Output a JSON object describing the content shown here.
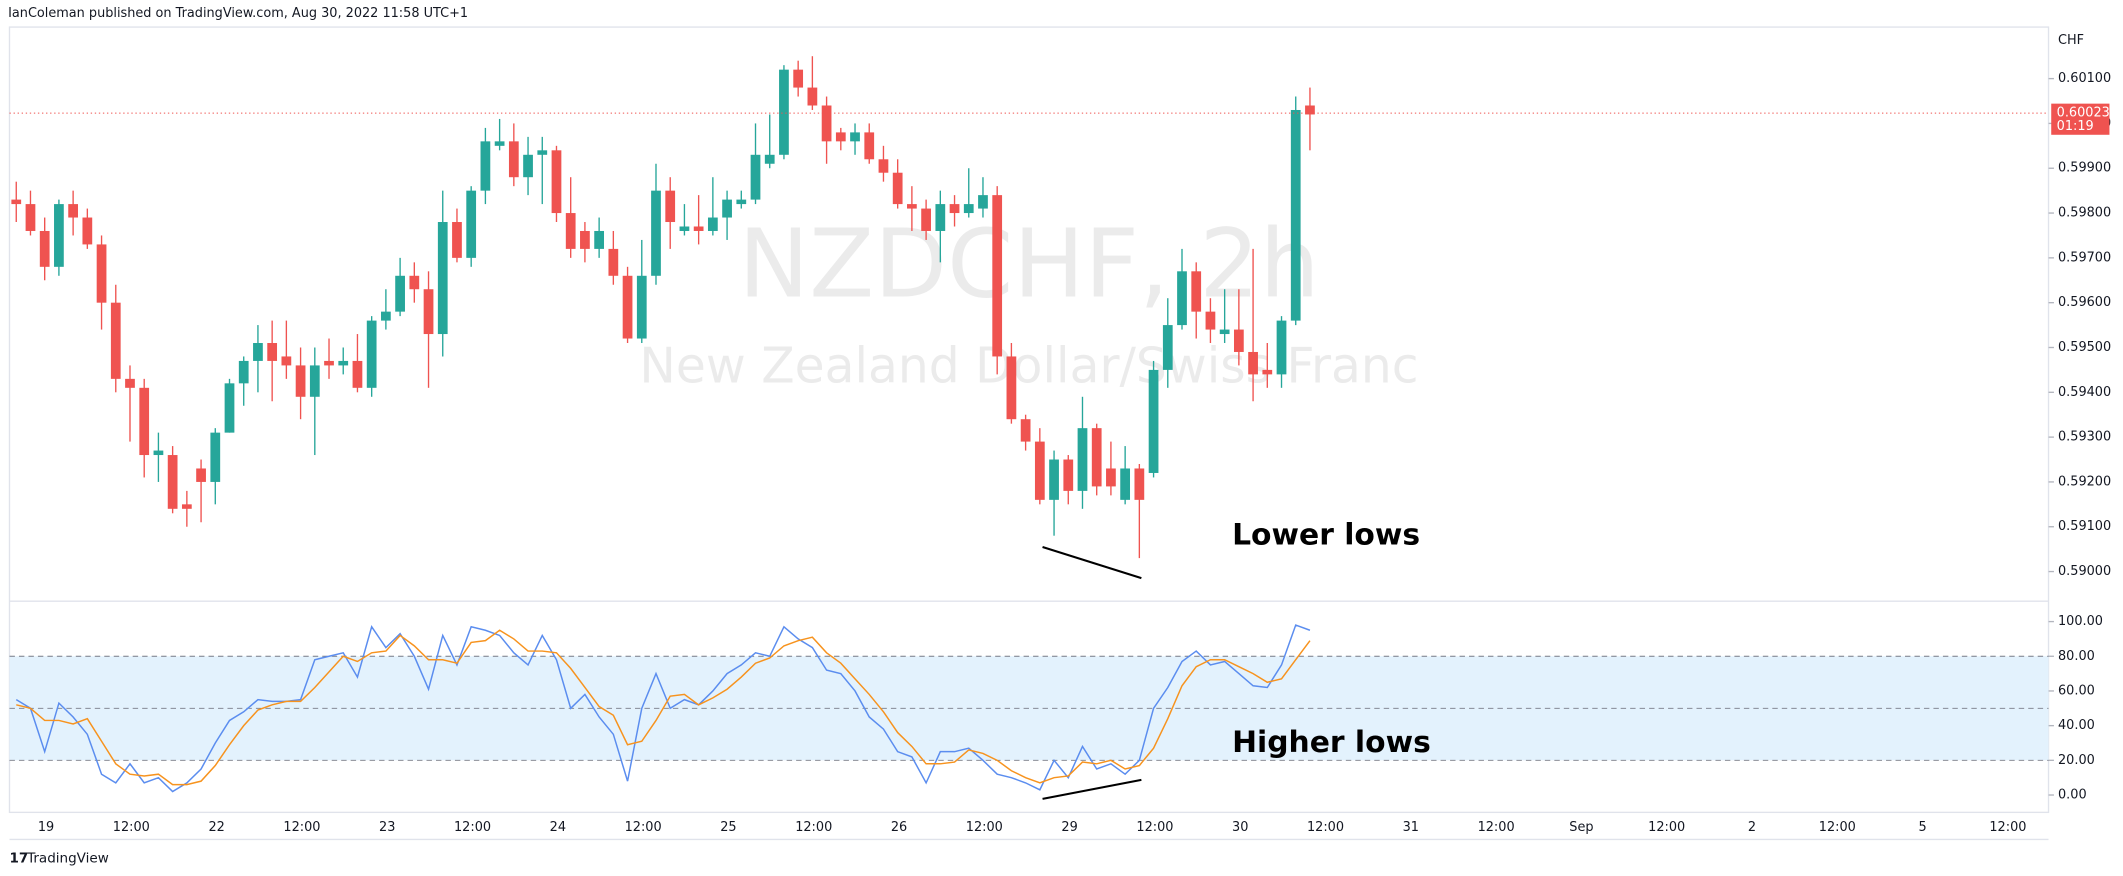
{
  "header": "IanColeman published on TradingView.com, Aug 30, 2022 11:58 UTC+1",
  "footer": "TradingView",
  "chart_data": [
    {
      "type": "candlestick",
      "title": "NZDCHF, 2h",
      "subtitle": "New Zealand Dollar/Swiss Franc",
      "currency": "CHF",
      "up_color": "#26a69a",
      "down_color": "#ef5350",
      "open": [
        0.5983,
        0.5982,
        0.5976,
        0.5968,
        0.5982,
        0.5979,
        0.5973,
        0.596,
        0.5943,
        0.5941,
        0.5926,
        0.5926,
        0.5915,
        0.5923,
        0.592,
        0.5931,
        0.5942,
        0.5947,
        0.5951,
        0.5948,
        0.5946,
        0.5939,
        0.5947,
        0.5946,
        0.5947,
        0.5941,
        0.5956,
        0.5958,
        0.5966,
        0.5963,
        0.5953,
        0.5978,
        0.597,
        0.5985,
        0.5995,
        0.5996,
        0.5988,
        0.5993,
        0.5994,
        0.598,
        0.5976,
        0.5972,
        0.5972,
        0.5966,
        0.5952,
        0.5966,
        0.5985,
        0.5976,
        0.5977,
        0.5976,
        0.5979,
        0.5982,
        0.5983,
        0.5991,
        0.5993,
        0.6012,
        0.6008,
        0.6004,
        0.5998,
        0.5996,
        0.5998,
        0.5992,
        0.5989,
        0.5982,
        0.5981,
        0.5976,
        0.5982,
        0.598,
        0.5981,
        0.5984,
        0.5948,
        0.5934,
        0.5929,
        0.5916,
        0.5925,
        0.5918,
        0.5932,
        0.5923,
        0.5916,
        0.5923,
        0.5922,
        0.5945,
        0.5955,
        0.5967,
        0.5958,
        0.5953,
        0.5954,
        0.5949,
        0.5945,
        0.5944,
        0.5956,
        0.6004
      ],
      "high": [
        0.5987,
        0.5985,
        0.5979,
        0.5983,
        0.5985,
        0.5981,
        0.5975,
        0.5964,
        0.5946,
        0.5943,
        0.5931,
        0.5928,
        0.5918,
        0.5925,
        0.5932,
        0.5943,
        0.5948,
        0.5955,
        0.5956,
        0.5956,
        0.595,
        0.595,
        0.5952,
        0.595,
        0.5953,
        0.5957,
        0.5963,
        0.597,
        0.5969,
        0.5967,
        0.5985,
        0.5981,
        0.5986,
        0.5999,
        0.6001,
        0.6,
        0.5997,
        0.5997,
        0.5995,
        0.5988,
        0.5978,
        0.5979,
        0.5976,
        0.5968,
        0.5974,
        0.5991,
        0.5988,
        0.5982,
        0.5984,
        0.5988,
        0.5985,
        0.5985,
        0.6,
        0.6002,
        0.6013,
        0.6014,
        0.6015,
        0.6006,
        0.5999,
        0.6,
        0.6,
        0.5995,
        0.5992,
        0.5986,
        0.5983,
        0.5985,
        0.5984,
        0.599,
        0.5988,
        0.5986,
        0.5951,
        0.5935,
        0.5932,
        0.5927,
        0.5926,
        0.5939,
        0.5933,
        0.5929,
        0.5928,
        0.5924,
        0.5947,
        0.5961,
        0.5972,
        0.5969,
        0.5961,
        0.5963,
        0.5963,
        0.5972,
        0.5951,
        0.5957,
        0.6006,
        0.6008
      ],
      "low": [
        0.5978,
        0.5975,
        0.5965,
        0.5966,
        0.5975,
        0.5972,
        0.5954,
        0.594,
        0.5929,
        0.5921,
        0.592,
        0.5913,
        0.591,
        0.5911,
        0.5915,
        0.5931,
        0.5937,
        0.594,
        0.5938,
        0.5943,
        0.5934,
        0.5926,
        0.5943,
        0.5944,
        0.594,
        0.5939,
        0.5954,
        0.5957,
        0.596,
        0.5941,
        0.5948,
        0.5969,
        0.5968,
        0.5982,
        0.5994,
        0.5986,
        0.5984,
        0.5982,
        0.5978,
        0.597,
        0.5969,
        0.597,
        0.5964,
        0.5951,
        0.5951,
        0.5964,
        0.5972,
        0.5975,
        0.5973,
        0.5975,
        0.5974,
        0.5981,
        0.5982,
        0.599,
        0.5992,
        0.6006,
        0.6003,
        0.5991,
        0.5994,
        0.5993,
        0.5991,
        0.5987,
        0.5981,
        0.5976,
        0.5974,
        0.5969,
        0.5977,
        0.5979,
        0.5979,
        0.5944,
        0.5933,
        0.5927,
        0.5915,
        0.5908,
        0.5915,
        0.5914,
        0.5917,
        0.5917,
        0.5915,
        0.5903,
        0.5921,
        0.5941,
        0.5954,
        0.5952,
        0.5951,
        0.5951,
        0.5946,
        0.5938,
        0.5941,
        0.5941,
        0.5955,
        0.5994
      ],
      "close": [
        0.5982,
        0.5976,
        0.5968,
        0.5982,
        0.5979,
        0.5973,
        0.596,
        0.5943,
        0.5941,
        0.5926,
        0.5927,
        0.5914,
        0.5914,
        0.592,
        0.5931,
        0.5942,
        0.5947,
        0.5951,
        0.5947,
        0.5946,
        0.5939,
        0.5946,
        0.5946,
        0.5947,
        0.5941,
        0.5956,
        0.5958,
        0.5966,
        0.5963,
        0.5953,
        0.5978,
        0.597,
        0.5985,
        0.5996,
        0.5996,
        0.5988,
        0.5993,
        0.5994,
        0.598,
        0.5972,
        0.5972,
        0.5976,
        0.5966,
        0.5952,
        0.5966,
        0.5985,
        0.5978,
        0.5977,
        0.5976,
        0.5979,
        0.5983,
        0.5983,
        0.5993,
        0.5993,
        0.6012,
        0.6008,
        0.6004,
        0.5996,
        0.5996,
        0.5998,
        0.5992,
        0.5989,
        0.5982,
        0.5981,
        0.5976,
        0.5982,
        0.598,
        0.5982,
        0.5984,
        0.5948,
        0.5934,
        0.5929,
        0.5916,
        0.5925,
        0.5918,
        0.5932,
        0.5919,
        0.5919,
        0.5923,
        0.5916,
        0.5945,
        0.5955,
        0.5967,
        0.5958,
        0.5954,
        0.5954,
        0.5949,
        0.5944,
        0.5944,
        0.5956,
        0.6003,
        0.6002
      ],
      "ylim": [
        0.5894,
        0.60215
      ],
      "yticks": [
        {
          "value": 0.59,
          "label": "0.59000"
        },
        {
          "value": 0.591,
          "label": "0.59100"
        },
        {
          "value": 0.592,
          "label": "0.59200"
        },
        {
          "value": 0.593,
          "label": "0.59300"
        },
        {
          "value": 0.594,
          "label": "0.59400"
        },
        {
          "value": 0.595,
          "label": "0.59500"
        },
        {
          "value": 0.596,
          "label": "0.59600"
        },
        {
          "value": 0.597,
          "label": "0.59700"
        },
        {
          "value": 0.598,
          "label": "0.59800"
        },
        {
          "value": 0.599,
          "label": "0.59900"
        },
        {
          "value": 0.6,
          "label": "0.60000"
        },
        {
          "value": 0.601,
          "label": "0.60100"
        }
      ],
      "last_price": 0.60023,
      "countdown": "01:19",
      "last_color": "#ef5350",
      "xticks": [
        "19",
        "12:00",
        "22",
        "12:00",
        "23",
        "12:00",
        "24",
        "12:00",
        "25",
        "12:00",
        "26",
        "12:00",
        "29",
        "12:00",
        "30",
        "12:00",
        "31",
        "12:00",
        "Sep",
        "12:00",
        "2",
        "12:00",
        "5",
        "12:00"
      ],
      "annotation": "Lower lows"
    },
    {
      "type": "line",
      "series": [
        {
          "color": "#5b8def",
          "values": [
            55,
            50,
            25,
            53,
            45,
            35,
            12,
            7,
            18,
            7,
            10,
            2,
            7,
            15,
            30,
            43,
            48,
            55,
            54,
            54,
            55,
            78,
            80,
            82,
            68,
            97,
            85,
            93,
            80,
            61,
            92,
            75,
            97,
            95,
            92,
            82,
            75,
            92,
            78,
            50,
            58,
            45,
            35,
            8,
            50,
            70,
            50,
            55,
            52,
            60,
            70,
            75,
            82,
            80,
            97,
            90,
            85,
            72,
            70,
            60,
            45,
            38,
            25,
            22,
            7,
            25,
            25,
            27,
            20,
            12,
            10,
            7,
            3,
            20,
            10,
            28,
            15,
            18,
            12,
            20,
            50,
            62,
            77,
            83,
            75,
            77,
            70,
            63,
            62,
            75,
            98,
            95
          ]
        },
        {
          "color": "#f7931e",
          "values": [
            52,
            50,
            43,
            43,
            41,
            44,
            31,
            18,
            12,
            11,
            12,
            6,
            6,
            8,
            17,
            29,
            40,
            49,
            52,
            54,
            54,
            62,
            71,
            80,
            77,
            82,
            83,
            92,
            86,
            78,
            78,
            76,
            88,
            89,
            95,
            90,
            83,
            83,
            82,
            73,
            62,
            51,
            46,
            29,
            31,
            43,
            57,
            58,
            52,
            56,
            61,
            68,
            76,
            79,
            86,
            89,
            91,
            82,
            76,
            67,
            58,
            48,
            36,
            28,
            18,
            18,
            19,
            26,
            24,
            20,
            14,
            10,
            7,
            10,
            11,
            19,
            18,
            20,
            15,
            17,
            27,
            44,
            63,
            74,
            78,
            78,
            74,
            70,
            65,
            67,
            78,
            89
          ]
        }
      ],
      "ylim": [
        -10,
        111
      ],
      "yticks": [
        {
          "value": 0,
          "label": "0.00"
        },
        {
          "value": 20,
          "label": "20.00"
        },
        {
          "value": 40,
          "label": "40.00"
        },
        {
          "value": 60,
          "label": "60.00"
        },
        {
          "value": 80,
          "label": "80.00"
        },
        {
          "value": 100,
          "label": "100.00"
        }
      ],
      "levels": [
        80,
        50,
        20
      ],
      "band_color": "#e3f2fd",
      "annotation": "Higher lows"
    }
  ]
}
